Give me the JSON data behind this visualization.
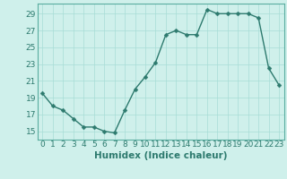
{
  "x": [
    0,
    1,
    2,
    3,
    4,
    5,
    6,
    7,
    8,
    9,
    10,
    11,
    12,
    13,
    14,
    15,
    16,
    17,
    18,
    19,
    20,
    21,
    22,
    23
  ],
  "y": [
    19.5,
    18.0,
    17.5,
    16.5,
    15.5,
    15.5,
    15.0,
    14.8,
    17.5,
    20.0,
    21.5,
    23.2,
    26.5,
    27.0,
    26.5,
    26.5,
    29.5,
    29.0,
    29.0,
    29.0,
    29.0,
    28.5,
    22.5,
    20.5
  ],
  "xlabel": "Humidex (Indice chaleur)",
  "bg_color": "#cff0eb",
  "line_color": "#2d7a6e",
  "grid_color": "#a8ddd6",
  "yticks": [
    15,
    17,
    19,
    21,
    23,
    25,
    27,
    29
  ],
  "xticks": [
    0,
    1,
    2,
    3,
    4,
    5,
    6,
    7,
    8,
    9,
    10,
    11,
    12,
    13,
    14,
    15,
    16,
    17,
    18,
    19,
    20,
    21,
    22,
    23
  ],
  "ylim": [
    14.0,
    30.2
  ],
  "xlim": [
    -0.5,
    23.5
  ],
  "xlabel_fontsize": 7.5,
  "tick_fontsize": 6.5,
  "marker_size": 2.5,
  "line_width": 1.0,
  "spine_color": "#5aada0"
}
